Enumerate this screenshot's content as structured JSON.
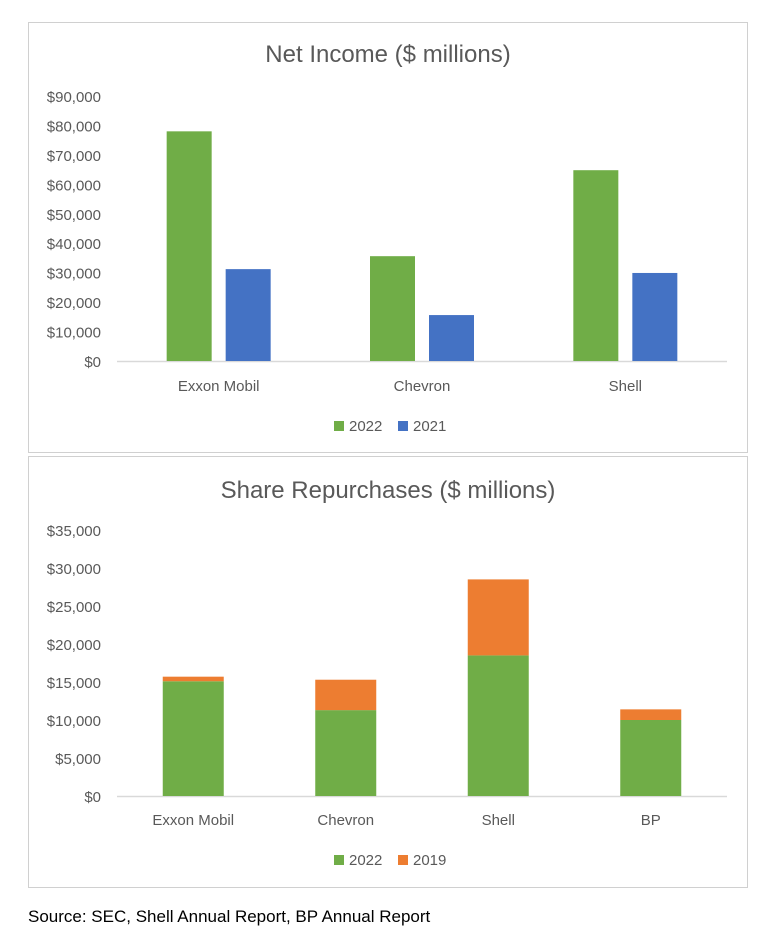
{
  "chart_data": [
    {
      "type": "bar",
      "title": "Net Income ($ millions)",
      "categories": [
        "Exxon Mobil",
        "Chevron",
        "Shell"
      ],
      "series": [
        {
          "name": "2022",
          "color": "#70ad47",
          "values": [
            78000,
            35600,
            64800
          ]
        },
        {
          "name": "2021",
          "color": "#4472c4",
          "values": [
            31200,
            15600,
            29900
          ]
        }
      ],
      "ylim": [
        0,
        90000
      ],
      "yticks": [
        "$0",
        "$10,000",
        "$20,000",
        "$30,000",
        "$40,000",
        "$50,000",
        "$60,000",
        "$70,000",
        "$80,000",
        "$90,000"
      ],
      "grid": false,
      "legend": "bottom"
    },
    {
      "type": "bar",
      "stacked": true,
      "title": "Share Repurchases ($ millions)",
      "categories": [
        "Exxon Mobil",
        "Chevron",
        "Shell",
        "BP"
      ],
      "series": [
        {
          "name": "2022",
          "color": "#70ad47",
          "values": [
            15100,
            11300,
            18500,
            10000
          ]
        },
        {
          "name": "2019",
          "color": "#ed7d31",
          "values": [
            600,
            4000,
            10000,
            1400
          ]
        }
      ],
      "ylim": [
        0,
        35000
      ],
      "yticks": [
        "$0",
        "$5,000",
        "$10,000",
        "$15,000",
        "$20,000",
        "$25,000",
        "$30,000",
        "$35,000"
      ],
      "grid": false,
      "legend": "bottom"
    }
  ],
  "source": "Source: SEC, Shell Annual Report, BP Annual Report"
}
